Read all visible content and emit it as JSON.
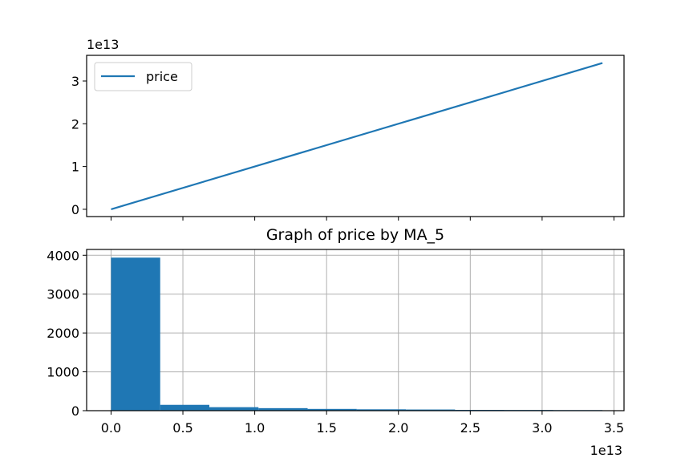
{
  "chart_data": [
    {
      "type": "line",
      "title": "",
      "xlabel": "",
      "ylabel": "",
      "y_offset_text": "1e13",
      "ylim": [
        -0.17,
        3.6
      ],
      "xlim": [
        -1.7,
        35.7
      ],
      "shared_x_ticks": [
        0.0,
        5.0,
        10.0,
        15.0,
        20.0,
        25.0,
        30.0,
        35.0
      ],
      "y_ticks": [
        0,
        1,
        2,
        3
      ],
      "y_tick_labels": [
        "0",
        "1",
        "2",
        "3"
      ],
      "grid": false,
      "legend_position": "upper-left",
      "series": [
        {
          "name": "price",
          "color": "#1f77b4",
          "x": [
            0,
            34.2
          ],
          "y": [
            0,
            3.42
          ]
        }
      ]
    },
    {
      "type": "bar",
      "title": "Graph of price by MA_5",
      "xlabel": "",
      "ylabel": "",
      "x_offset_text": "1e13",
      "xlim": [
        -1.7,
        35.7
      ],
      "ylim": [
        0,
        4150
      ],
      "x_ticks": [
        0.0,
        5.0,
        10.0,
        15.0,
        20.0,
        25.0,
        30.0,
        35.0
      ],
      "x_tick_labels": [
        "0.0",
        "0.5",
        "1.0",
        "1.5",
        "2.0",
        "2.5",
        "3.0",
        "3.5"
      ],
      "y_ticks": [
        0,
        1000,
        2000,
        3000,
        4000
      ],
      "y_tick_labels": [
        "0",
        "1000",
        "2000",
        "3000",
        "4000"
      ],
      "grid": true,
      "color": "#1f77b4",
      "bin_edges": [
        0,
        3.42,
        6.84,
        10.26,
        13.68,
        17.1,
        20.52,
        23.94,
        27.36,
        30.78,
        34.2
      ],
      "values": [
        3940,
        150,
        90,
        65,
        45,
        35,
        30,
        20,
        18,
        15
      ]
    }
  ]
}
